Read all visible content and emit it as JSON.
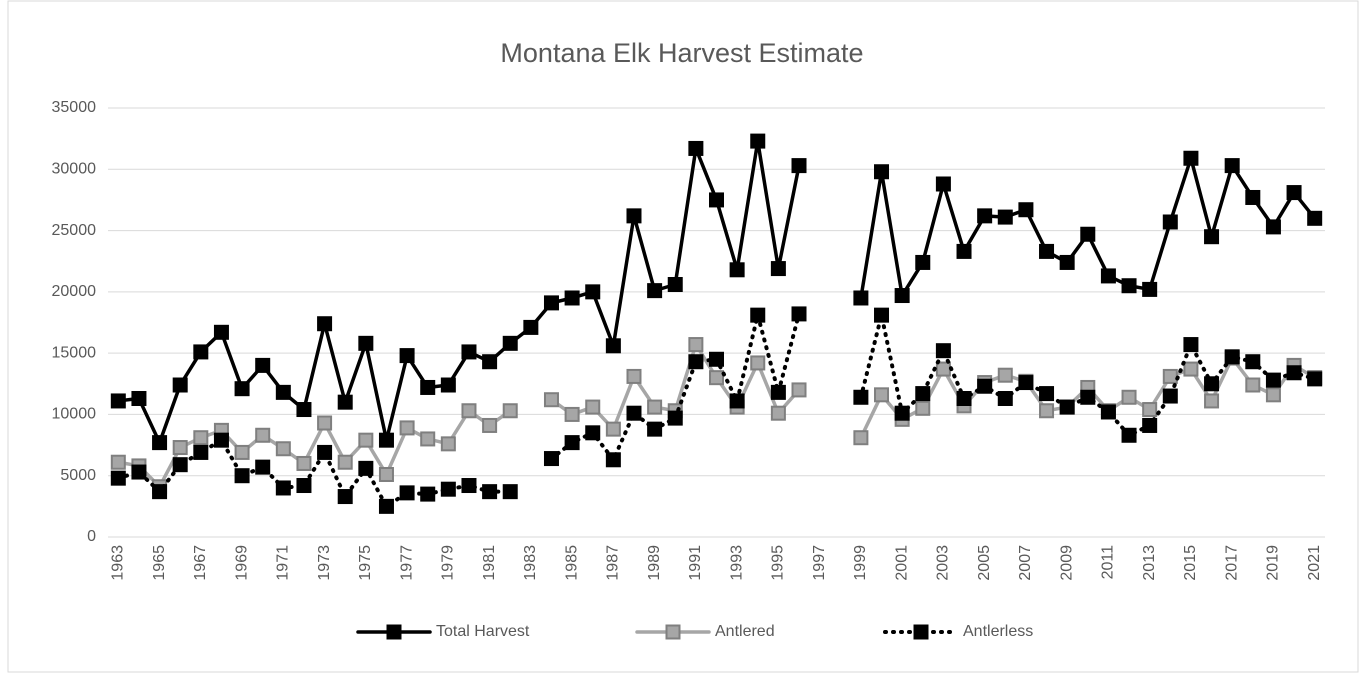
{
  "chart_data": {
    "type": "line",
    "title": "Montana Elk Harvest Estimate",
    "categories": [
      "1963",
      null,
      "1965",
      null,
      "1967",
      null,
      "1969",
      null,
      "1971",
      null,
      "1973",
      null,
      "1975",
      null,
      "1977",
      null,
      "1979",
      null,
      "1981",
      null,
      "1983",
      null,
      "1985",
      null,
      "1987",
      null,
      "1989",
      null,
      "1991",
      null,
      "1993",
      null,
      "1995",
      null,
      "1997",
      null,
      "1999",
      null,
      "2001",
      null,
      "2003",
      null,
      "2005",
      null,
      "2007",
      null,
      "2009",
      null,
      "2011",
      null,
      "2013",
      null,
      "2015",
      null,
      "2017",
      null,
      "2019",
      null,
      "2021"
    ],
    "series": [
      {
        "name": "Total Harvest",
        "color": "#000000",
        "marker_color": "#000000",
        "line_style": "solid",
        "values": [
          11100,
          11300,
          7700,
          12400,
          15100,
          16700,
          12100,
          14000,
          11800,
          10400,
          17400,
          11000,
          15800,
          7900,
          14800,
          12200,
          12400,
          15100,
          14300,
          15800,
          17100,
          19100,
          19500,
          20000,
          15600,
          26200,
          20100,
          20600,
          31700,
          27500,
          21800,
          32300,
          21900,
          30300,
          null,
          null,
          19500,
          29800,
          19700,
          22400,
          28800,
          23300,
          26200,
          26100,
          26700,
          23300,
          22400,
          24700,
          21300,
          20500,
          20200,
          25700,
          30900,
          24500,
          30300,
          27700,
          25300,
          28100,
          26000
        ]
      },
      {
        "name": "Antlered",
        "color": "#a6a6a6",
        "marker_color": "#7f7f7f",
        "line_style": "solid",
        "values": [
          6100,
          5800,
          4100,
          7300,
          8100,
          8700,
          6900,
          8300,
          7200,
          6000,
          9300,
          6100,
          7900,
          5100,
          8900,
          8000,
          7600,
          10300,
          9100,
          10300,
          null,
          11200,
          10000,
          10600,
          8800,
          13100,
          10600,
          10300,
          15700,
          13000,
          10600,
          14200,
          10100,
          12000,
          null,
          null,
          8100,
          11600,
          9600,
          10500,
          13700,
          10700,
          12600,
          13200,
          12700,
          10300,
          10600,
          12200,
          10300,
          11400,
          10400,
          13100,
          13700,
          11100,
          14600,
          12400,
          11600,
          14000,
          13000
        ]
      },
      {
        "name": "Antlerless",
        "color": "#000000",
        "marker_color": "#000000",
        "line_style": "dotted",
        "values": [
          4800,
          5300,
          3700,
          5900,
          6900,
          7900,
          5000,
          5700,
          4000,
          4200,
          6900,
          3300,
          5600,
          2500,
          3600,
          3500,
          3900,
          4200,
          3700,
          3700,
          null,
          6400,
          7700,
          8500,
          6300,
          10100,
          8800,
          9700,
          14300,
          14500,
          11100,
          18100,
          11800,
          18200,
          null,
          null,
          11400,
          18100,
          10100,
          11700,
          15200,
          11300,
          12300,
          11300,
          12600,
          11700,
          10600,
          11400,
          10200,
          8300,
          9100,
          11500,
          15700,
          12500,
          14700,
          14300,
          12800,
          13400,
          12900
        ]
      }
    ],
    "ylim": [
      0,
      35000
    ],
    "yticks": [
      0,
      5000,
      10000,
      15000,
      20000,
      25000,
      30000,
      35000
    ],
    "grid": true,
    "legend": "bottom"
  }
}
